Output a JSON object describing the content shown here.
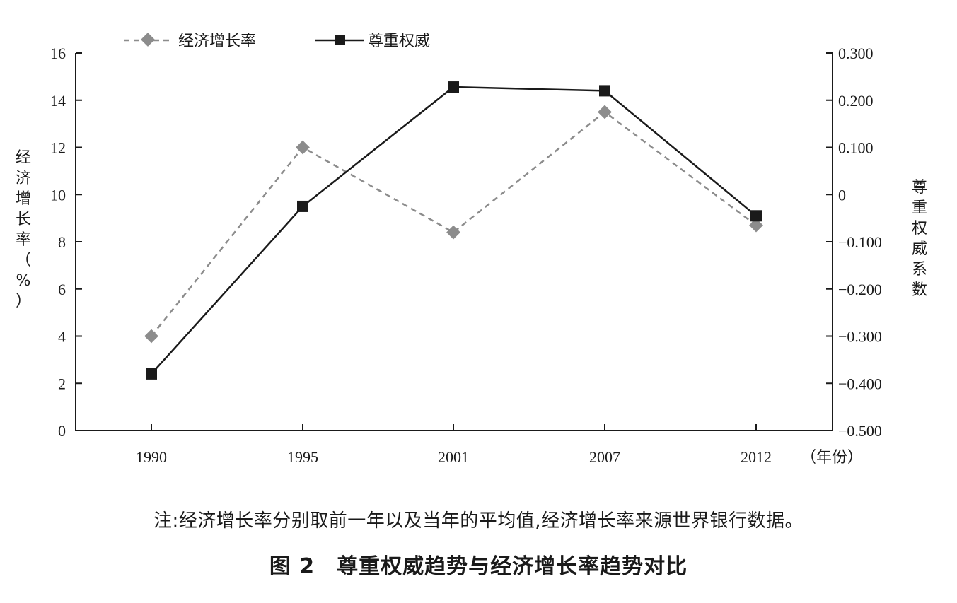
{
  "chart_data": {
    "type": "line",
    "categories": [
      "1990",
      "1995",
      "2001",
      "2007",
      "2012"
    ],
    "x_unit_label": "（年份）",
    "series": [
      {
        "name": "经济增长率",
        "axis": "left",
        "style": "dashed",
        "marker": "diamond",
        "color": "#8c8c8c",
        "values": [
          4.0,
          12.0,
          8.4,
          13.5,
          8.7
        ]
      },
      {
        "name": "尊重权威",
        "axis": "right",
        "style": "solid",
        "marker": "square",
        "color": "#1a1a1a",
        "values": [
          -0.38,
          -0.025,
          0.228,
          0.22,
          -0.045
        ]
      }
    ],
    "y_left": {
      "label": "经济增长率（%）",
      "range": [
        0,
        16
      ],
      "ticks": [
        "0",
        "2",
        "4",
        "6",
        "8",
        "10",
        "12",
        "14",
        "16"
      ]
    },
    "y_right": {
      "label": "尊重权威系数",
      "range": [
        -0.5,
        0.3
      ],
      "ticks": [
        "−0.500",
        "−0.400",
        "−0.300",
        "−0.200",
        "−0.100",
        "0",
        "0.100",
        "0.200",
        "0.300"
      ]
    },
    "legend_position": "top-left",
    "grid": false
  },
  "note": "注:经济增长率分别取前一年以及当年的平均值,经济增长率来源世界银行数据。",
  "caption": "图 2　尊重权威趋势与经济增长率趋势对比"
}
